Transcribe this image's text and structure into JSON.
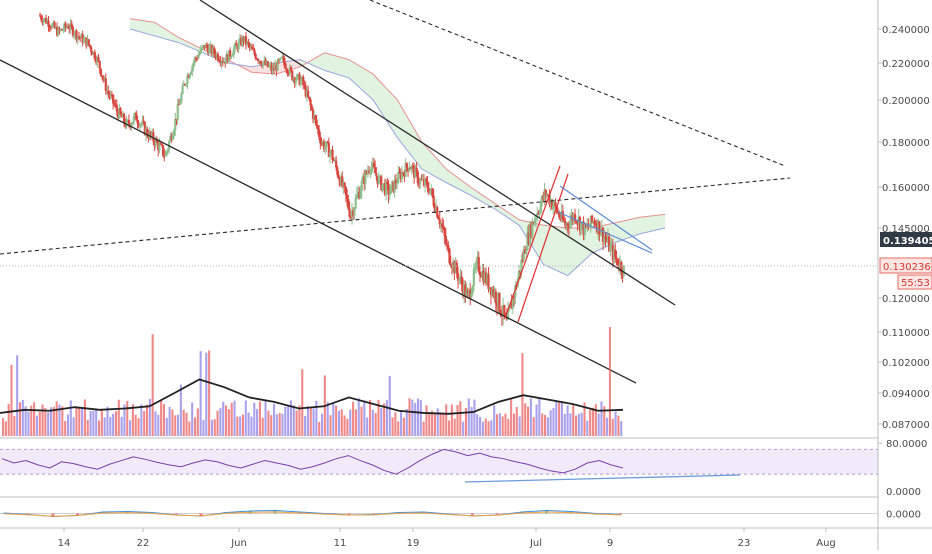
{
  "chart_data": [
    {
      "type": "candlestick",
      "panel": "price",
      "symbol_overlays": [
        "ichimoku-cloud",
        "trend-channel",
        "dashed-trendlines",
        "wedge"
      ],
      "ylim": [
        0.083,
        0.252
      ],
      "y_ticks": [
        "0.240000",
        "0.220000",
        "0.200000",
        "0.180000",
        "0.160000",
        "0.145000",
        "0.120000",
        "0.110000",
        "0.102000",
        "0.094000",
        "0.087000"
      ],
      "x_ticks": [
        "14",
        "22",
        "Jun",
        "11",
        "19",
        "Jul",
        "9",
        "23",
        "Aug"
      ],
      "price_path": [
        [
          0.248,
          0.244
        ],
        [
          0.244,
          0.238
        ],
        [
          0.238,
          0.242
        ],
        [
          0.242,
          0.236
        ],
        [
          0.236,
          0.232
        ],
        [
          0.232,
          0.222
        ],
        [
          0.222,
          0.205
        ],
        [
          0.205,
          0.195
        ],
        [
          0.195,
          0.188
        ],
        [
          0.188,
          0.192
        ],
        [
          0.192,
          0.185
        ],
        [
          0.185,
          0.18
        ],
        [
          0.18,
          0.174
        ],
        [
          0.174,
          0.19
        ],
        [
          0.19,
          0.21
        ],
        [
          0.21,
          0.222
        ],
        [
          0.222,
          0.23
        ],
        [
          0.23,
          0.226
        ],
        [
          0.226,
          0.221
        ],
        [
          0.221,
          0.228
        ],
        [
          0.228,
          0.234
        ],
        [
          0.234,
          0.226
        ],
        [
          0.226,
          0.22
        ],
        [
          0.22,
          0.216
        ],
        [
          0.216,
          0.222
        ],
        [
          0.222,
          0.213
        ],
        [
          0.213,
          0.21
        ],
        [
          0.21,
          0.195
        ],
        [
          0.195,
          0.18
        ],
        [
          0.18,
          0.175
        ],
        [
          0.175,
          0.162
        ],
        [
          0.162,
          0.15
        ],
        [
          0.15,
          0.16
        ],
        [
          0.16,
          0.17
        ],
        [
          0.17,
          0.162
        ],
        [
          0.162,
          0.158
        ],
        [
          0.158,
          0.165
        ],
        [
          0.165,
          0.17
        ],
        [
          0.17,
          0.163
        ],
        [
          0.163,
          0.16
        ],
        [
          0.16,
          0.15
        ],
        [
          0.15,
          0.136
        ],
        [
          0.136,
          0.128
        ],
        [
          0.128,
          0.12
        ],
        [
          0.12,
          0.132
        ],
        [
          0.132,
          0.126
        ],
        [
          0.126,
          0.12
        ],
        [
          0.12,
          0.112
        ],
        [
          0.112,
          0.125
        ],
        [
          0.125,
          0.14
        ],
        [
          0.14,
          0.15
        ],
        [
          0.15,
          0.158
        ],
        [
          0.158,
          0.152
        ],
        [
          0.152,
          0.146
        ],
        [
          0.146,
          0.15
        ],
        [
          0.15,
          0.144
        ],
        [
          0.144,
          0.148
        ],
        [
          0.148,
          0.142
        ],
        [
          0.142,
          0.135
        ],
        [
          0.135,
          0.13
        ]
      ],
      "last_price": "0.139405",
      "current_price": "0.130236",
      "countdown": "55:53",
      "ichimoku_cloud": {
        "span_a": [
          0.246,
          0.244,
          0.235,
          0.228,
          0.222,
          0.215,
          0.214,
          0.218,
          0.226,
          0.222,
          0.214,
          0.2,
          0.18,
          0.168,
          0.16,
          0.154,
          0.148,
          0.146,
          0.145,
          0.145,
          0.147,
          0.149,
          0.15
        ],
        "span_b": [
          0.24,
          0.236,
          0.232,
          0.226,
          0.22,
          0.218,
          0.22,
          0.222,
          0.216,
          0.212,
          0.2,
          0.182,
          0.168,
          0.162,
          0.157,
          0.152,
          0.146,
          0.132,
          0.128,
          0.136,
          0.14,
          0.143,
          0.145
        ]
      },
      "volume": {
        "ma": [
          0.0895,
          0.0902,
          0.09,
          0.0908,
          0.0902,
          0.0905,
          0.091,
          0.094,
          0.0975,
          0.0955,
          0.093,
          0.092,
          0.0905,
          0.091,
          0.093,
          0.0915,
          0.09,
          0.0895,
          0.0893,
          0.0897,
          0.092,
          0.0935,
          0.0925,
          0.0915,
          0.09,
          0.0902
        ]
      }
    },
    {
      "type": "line",
      "panel": "rsi",
      "ylim": [
        -0.5,
        82
      ],
      "y_ticks": [
        "80.0000",
        "0.0000"
      ],
      "values": [
        55,
        48,
        52,
        45,
        40,
        50,
        47,
        42,
        38,
        46,
        52,
        58,
        54,
        49,
        45,
        42,
        48,
        53,
        50,
        44,
        40,
        46,
        52,
        48,
        44,
        38,
        42,
        48,
        55,
        60,
        52,
        45,
        36,
        30,
        40,
        52,
        62,
        70,
        66,
        60,
        64,
        58,
        55,
        50,
        46,
        40,
        35,
        32,
        38,
        48,
        52,
        45,
        40
      ]
    },
    {
      "type": "line",
      "panel": "macd",
      "ylim": [
        -1,
        1
      ],
      "y_ticks": [
        "0.0000"
      ],
      "values": [
        0.1,
        -0.2,
        -0.6,
        -0.4,
        0.3,
        0.4,
        0.2,
        -0.3,
        -0.5,
        0.2,
        0.5,
        0.6,
        0.3,
        0.0,
        -0.3,
        -0.2,
        0.2,
        0.3,
        -0.1,
        -0.5,
        -0.3,
        0.3,
        0.6,
        0.4,
        0.0,
        -0.2
      ]
    }
  ]
}
